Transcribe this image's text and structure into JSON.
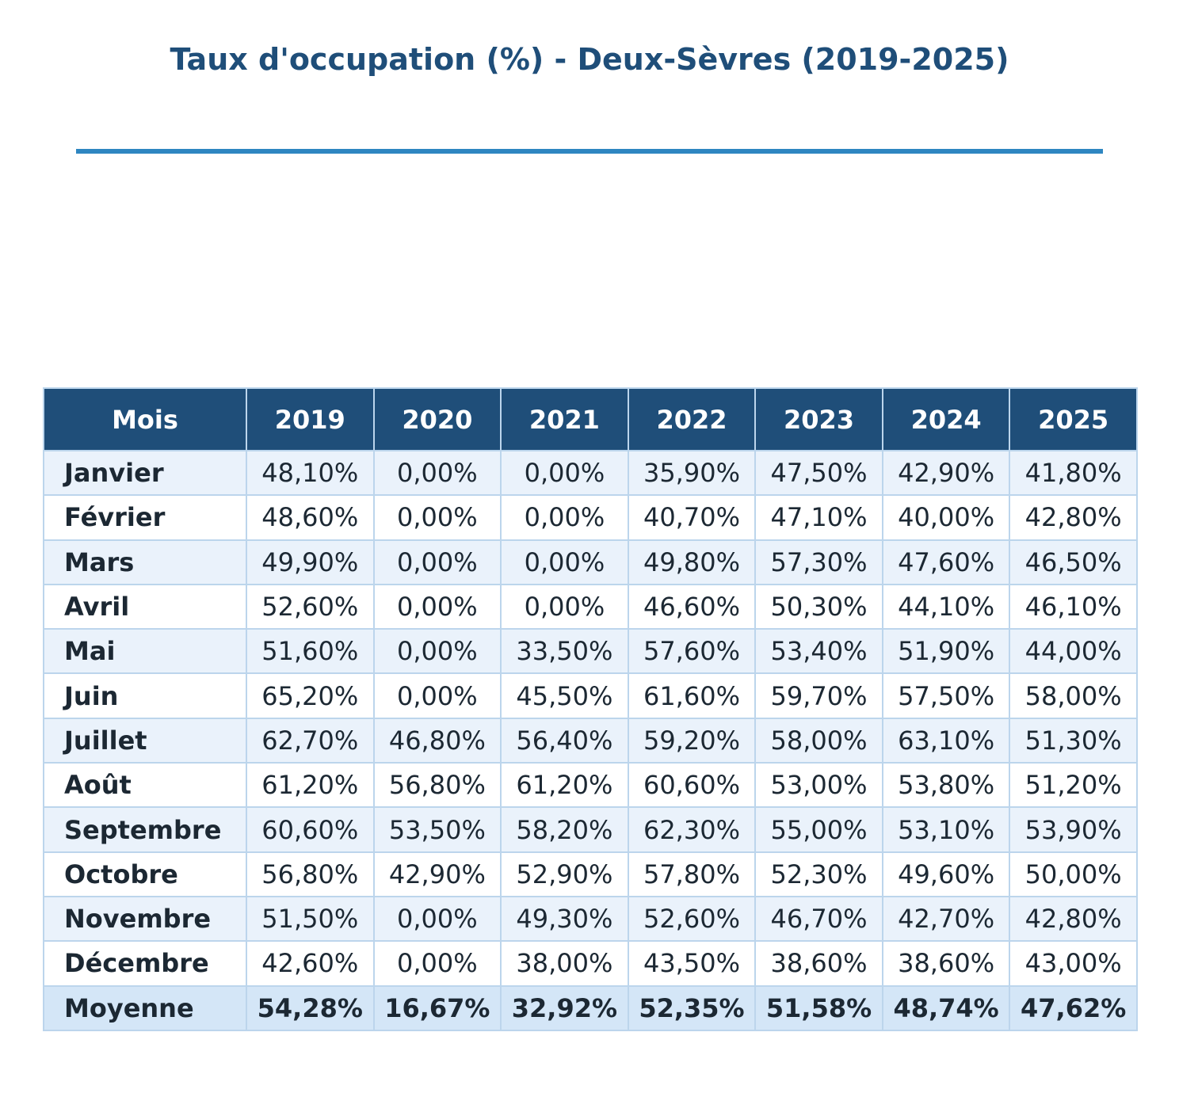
{
  "title": "Taux d'occupation (%) - Deux-Sèvres (2019-2025)",
  "colors": {
    "title": "#1f4e79",
    "rule": "#2e86c1",
    "header_bg": "#1f4e79",
    "row_alt_bg": "#eaf2fb",
    "average_bg": "#d4e6f7",
    "border": "#bcd5ec"
  },
  "chart_data": {
    "type": "table",
    "title": "Taux d'occupation (%) - Deux-Sèvres (2019-2025)",
    "columns": [
      "Mois",
      "2019",
      "2020",
      "2021",
      "2022",
      "2023",
      "2024",
      "2025"
    ],
    "rows": [
      [
        "Janvier",
        "48,10%",
        "0,00%",
        "0,00%",
        "35,90%",
        "47,50%",
        "42,90%",
        "41,80%"
      ],
      [
        "Février",
        "48,60%",
        "0,00%",
        "0,00%",
        "40,70%",
        "47,10%",
        "40,00%",
        "42,80%"
      ],
      [
        "Mars",
        "49,90%",
        "0,00%",
        "0,00%",
        "49,80%",
        "57,30%",
        "47,60%",
        "46,50%"
      ],
      [
        "Avril",
        "52,60%",
        "0,00%",
        "0,00%",
        "46,60%",
        "50,30%",
        "44,10%",
        "46,10%"
      ],
      [
        "Mai",
        "51,60%",
        "0,00%",
        "33,50%",
        "57,60%",
        "53,40%",
        "51,90%",
        "44,00%"
      ],
      [
        "Juin",
        "65,20%",
        "0,00%",
        "45,50%",
        "61,60%",
        "59,70%",
        "57,50%",
        "58,00%"
      ],
      [
        "Juillet",
        "62,70%",
        "46,80%",
        "56,40%",
        "59,20%",
        "58,00%",
        "63,10%",
        "51,30%"
      ],
      [
        "Août",
        "61,20%",
        "56,80%",
        "61,20%",
        "60,60%",
        "53,00%",
        "53,80%",
        "51,20%"
      ],
      [
        "Septembre",
        "60,60%",
        "53,50%",
        "58,20%",
        "62,30%",
        "55,00%",
        "53,10%",
        "53,90%"
      ],
      [
        "Octobre",
        "56,80%",
        "42,90%",
        "52,90%",
        "57,80%",
        "52,30%",
        "49,60%",
        "50,00%"
      ],
      [
        "Novembre",
        "51,50%",
        "0,00%",
        "49,30%",
        "52,60%",
        "46,70%",
        "42,70%",
        "42,80%"
      ],
      [
        "Décembre",
        "42,60%",
        "0,00%",
        "38,00%",
        "43,50%",
        "38,60%",
        "38,60%",
        "43,00%"
      ]
    ],
    "average_row": [
      "Moyenne",
      "54,28%",
      "16,67%",
      "32,92%",
      "52,35%",
      "51,58%",
      "48,74%",
      "47,62%"
    ]
  }
}
